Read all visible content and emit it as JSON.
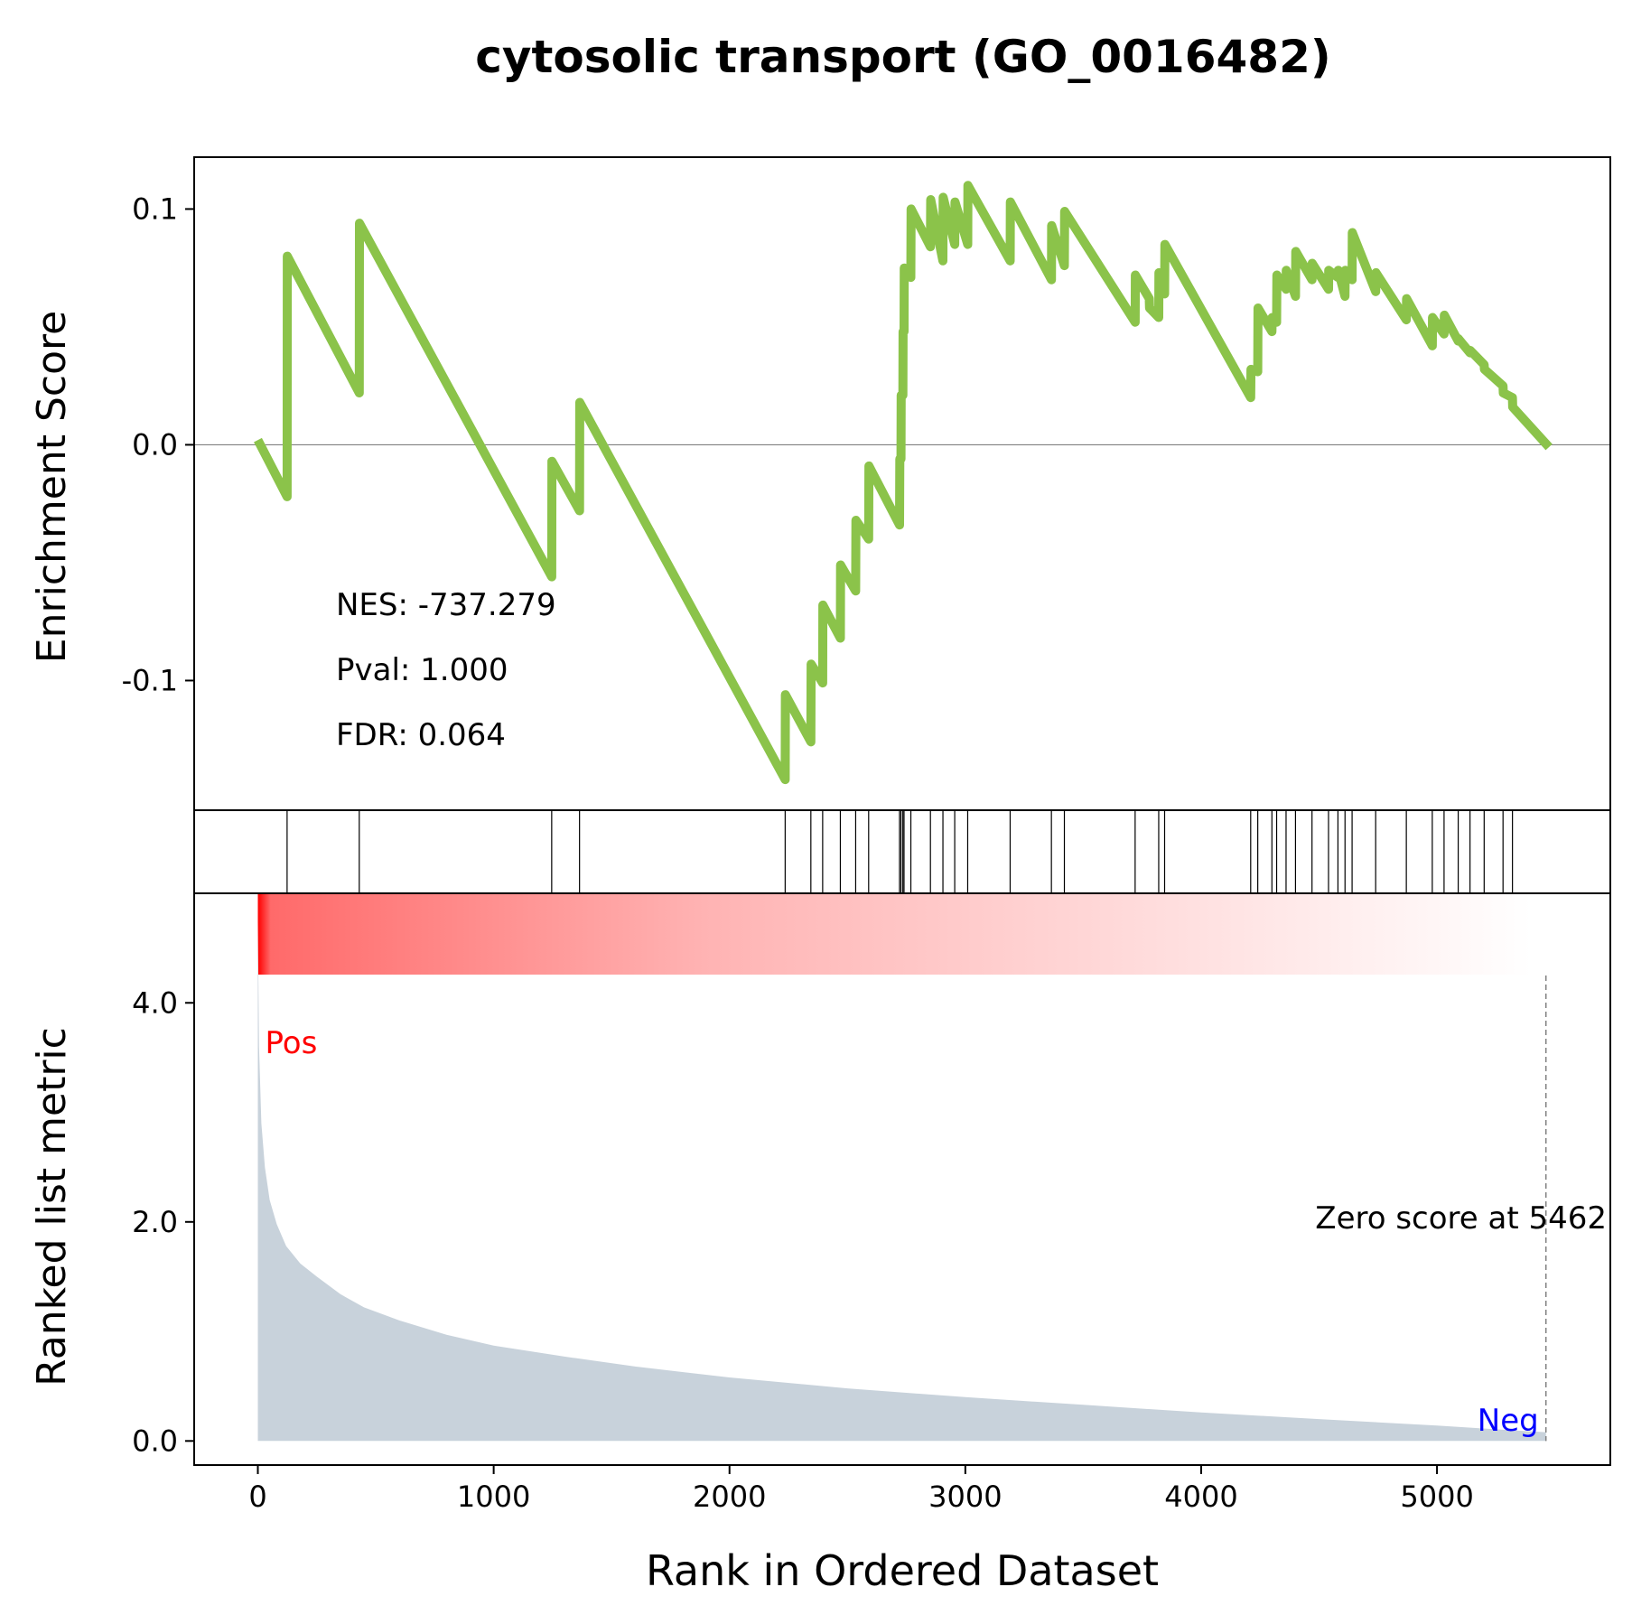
{
  "chart_data": {
    "type": "line",
    "title": "cytosolic transport (GO_0016482)",
    "xlabel": "Rank in Ordered Dataset",
    "xlim": [
      -270,
      5735
    ],
    "x_ticks": [
      {
        "value": 0,
        "label": "0"
      },
      {
        "value": 1000,
        "label": "1000"
      },
      {
        "value": 2000,
        "label": "2000"
      },
      {
        "value": 3000,
        "label": "3000"
      },
      {
        "value": 4000,
        "label": "4000"
      },
      {
        "value": 5000,
        "label": "5000"
      }
    ],
    "enrichment": {
      "ylabel": "Enrichment Score",
      "ylim": [
        -0.155,
        0.122
      ],
      "y_ticks": [
        {
          "value": 0.1,
          "label": "0.1"
        },
        {
          "value": 0.0,
          "label": "0.0"
        },
        {
          "value": -0.1,
          "label": "-0.1"
        }
      ],
      "line_color": "#8bc34a",
      "points": [
        [
          0,
          0.002
        ],
        [
          124,
          -0.022
        ],
        [
          125,
          0.08
        ],
        [
          430,
          0.022
        ],
        [
          431,
          0.094
        ],
        [
          1246,
          -0.056
        ],
        [
          1247,
          -0.007
        ],
        [
          1364,
          -0.028
        ],
        [
          1365,
          0.018
        ],
        [
          2236,
          -0.142
        ],
        [
          2237,
          -0.106
        ],
        [
          2345,
          -0.126
        ],
        [
          2346,
          -0.093
        ],
        [
          2395,
          -0.101
        ],
        [
          2396,
          -0.068
        ],
        [
          2470,
          -0.082
        ],
        [
          2471,
          -0.051
        ],
        [
          2535,
          -0.062
        ],
        [
          2536,
          -0.032
        ],
        [
          2590,
          -0.04
        ],
        [
          2591,
          -0.009
        ],
        [
          2721,
          -0.034
        ],
        [
          2722,
          -0.006
        ],
        [
          2727,
          -0.006
        ],
        [
          2728,
          0.021
        ],
        [
          2735,
          0.021
        ],
        [
          2736,
          0.048
        ],
        [
          2740,
          0.048
        ],
        [
          2741,
          0.075
        ],
        [
          2769,
          0.071
        ],
        [
          2770,
          0.1
        ],
        [
          2852,
          0.084
        ],
        [
          2853,
          0.104
        ],
        [
          2905,
          0.078
        ],
        [
          2906,
          0.105
        ],
        [
          2955,
          0.085
        ],
        [
          2956,
          0.103
        ],
        [
          3010,
          0.085
        ],
        [
          3011,
          0.11
        ],
        [
          3190,
          0.078
        ],
        [
          3191,
          0.103
        ],
        [
          3365,
          0.07
        ],
        [
          3366,
          0.093
        ],
        [
          3420,
          0.076
        ],
        [
          3421,
          0.099
        ],
        [
          3720,
          0.052
        ],
        [
          3721,
          0.072
        ],
        [
          3780,
          0.062
        ],
        [
          3781,
          0.058
        ],
        [
          3820,
          0.054
        ],
        [
          3821,
          0.073
        ],
        [
          3845,
          0.064
        ],
        [
          3846,
          0.085
        ],
        [
          4210,
          0.02
        ],
        [
          4211,
          0.032
        ],
        [
          4240,
          0.031
        ],
        [
          4241,
          0.058
        ],
        [
          4300,
          0.048
        ],
        [
          4301,
          0.054
        ],
        [
          4320,
          0.052
        ],
        [
          4321,
          0.072
        ],
        [
          4360,
          0.066
        ],
        [
          4361,
          0.074
        ],
        [
          4400,
          0.063
        ],
        [
          4401,
          0.082
        ],
        [
          4470,
          0.07
        ],
        [
          4471,
          0.077
        ],
        [
          4540,
          0.066
        ],
        [
          4541,
          0.074
        ],
        [
          4580,
          0.071
        ],
        [
          4581,
          0.074
        ],
        [
          4610,
          0.063
        ],
        [
          4611,
          0.074
        ],
        [
          4640,
          0.07
        ],
        [
          4641,
          0.09
        ],
        [
          4740,
          0.065
        ],
        [
          4741,
          0.073
        ],
        [
          4870,
          0.053
        ],
        [
          4871,
          0.062
        ],
        [
          4980,
          0.042
        ],
        [
          4981,
          0.054
        ],
        [
          5030,
          0.047
        ],
        [
          5031,
          0.055
        ],
        [
          5090,
          0.044
        ],
        [
          5091,
          0.045
        ],
        [
          5140,
          0.039
        ],
        [
          5141,
          0.04
        ],
        [
          5200,
          0.034
        ],
        [
          5201,
          0.032
        ],
        [
          5280,
          0.025
        ],
        [
          5281,
          0.022
        ],
        [
          5320,
          0.02
        ],
        [
          5321,
          0.016
        ],
        [
          5475,
          -0.001
        ]
      ],
      "annotations": [
        {
          "key": "nes",
          "text": "NES: -737.279"
        },
        {
          "key": "pval",
          "text": "Pval: 1.000"
        },
        {
          "key": "fdr",
          "text": "FDR: 0.064"
        }
      ]
    },
    "hits": [
      124,
      430,
      1246,
      1364,
      2236,
      2345,
      2395,
      2470,
      2535,
      2590,
      2721,
      2727,
      2735,
      2740,
      2769,
      2852,
      2905,
      2955,
      3010,
      3190,
      3365,
      3420,
      3720,
      3820,
      3845,
      4210,
      4240,
      4300,
      4320,
      4360,
      4400,
      4470,
      4540,
      4580,
      4610,
      4640,
      4740,
      4870,
      4980,
      5030,
      5090,
      5140,
      5200,
      5280,
      5320
    ],
    "heatbar": {
      "start": 0,
      "end": 5400,
      "from_color": "#ff0000",
      "to_color": "#ffffff"
    },
    "ranked_metric": {
      "ylabel": "Ranked list metric",
      "ylim": [
        -0.22,
        5.0
      ],
      "y_ticks": [
        {
          "value": 4.0,
          "label": "4.0"
        },
        {
          "value": 2.0,
          "label": "2.0"
        },
        {
          "value": 0.0,
          "label": "0.0"
        }
      ],
      "fill_color": "#c8d2db",
      "points": [
        [
          0,
          4.75
        ],
        [
          5,
          3.6
        ],
        [
          15,
          2.9
        ],
        [
          30,
          2.5
        ],
        [
          50,
          2.2
        ],
        [
          80,
          1.98
        ],
        [
          120,
          1.78
        ],
        [
          180,
          1.62
        ],
        [
          250,
          1.5
        ],
        [
          350,
          1.34
        ],
        [
          450,
          1.22
        ],
        [
          600,
          1.1
        ],
        [
          800,
          0.97
        ],
        [
          1000,
          0.87
        ],
        [
          1300,
          0.77
        ],
        [
          1600,
          0.68
        ],
        [
          2000,
          0.58
        ],
        [
          2500,
          0.48
        ],
        [
          3000,
          0.4
        ],
        [
          3500,
          0.33
        ],
        [
          4000,
          0.26
        ],
        [
          4500,
          0.2
        ],
        [
          5000,
          0.14
        ],
        [
          5300,
          0.1
        ],
        [
          5462,
          0.08
        ]
      ],
      "zero_score_rank": 5462,
      "zero_label": "Zero score at 5462",
      "pos_label": "Pos",
      "neg_label": "Neg",
      "pos_color": "#ff0000",
      "neg_color": "#0000ff"
    }
  }
}
